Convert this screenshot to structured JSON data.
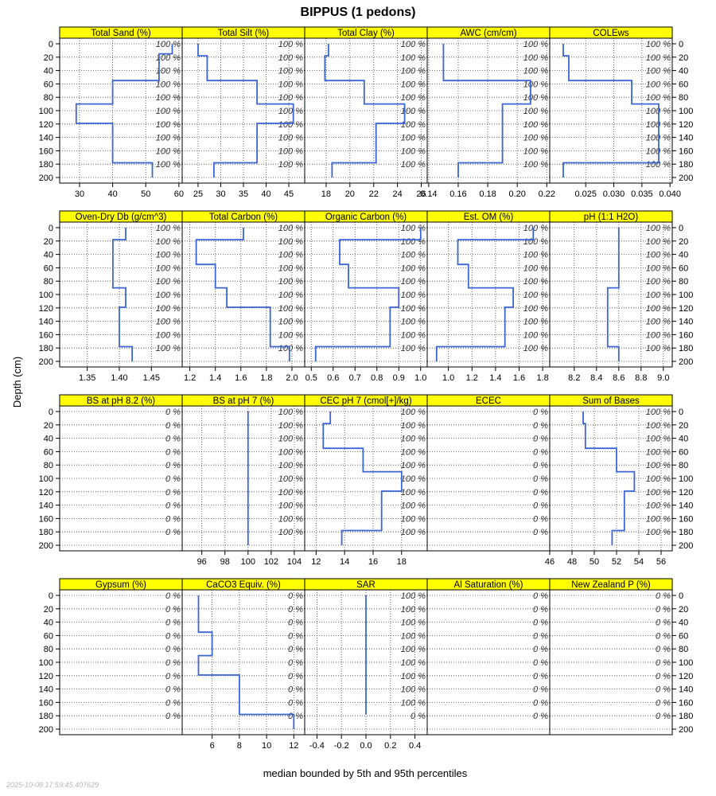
{
  "figure": {
    "title": "BIPPUS (1 pedons)",
    "ylabel": "Depth (cm)",
    "xlabel": "median bounded by 5th and 95th percentiles",
    "timestamp": "2025-10-08 17:59:45.407629"
  },
  "colors": {
    "line": "#3b66d6",
    "strip": "#ffff00",
    "grid": "#444444"
  },
  "chart_data": {
    "type": "line",
    "depth_axis": {
      "range": [
        0,
        200
      ],
      "reversed": true,
      "ticks": [
        0,
        20,
        40,
        60,
        80,
        100,
        120,
        140,
        160,
        180,
        200
      ]
    },
    "pct_depths": [
      0,
      20,
      40,
      60,
      80,
      100,
      120,
      140,
      160,
      180
    ],
    "panels": [
      {
        "title": "Total Sand (%)",
        "xlim": [
          24,
          61
        ],
        "xticks": [
          30,
          40,
          50,
          60
        ],
        "pct_value": "100 %",
        "steps": [
          [
            0,
            58
          ],
          [
            15,
            54
          ],
          [
            55,
            40
          ],
          [
            90,
            29
          ],
          [
            119,
            40
          ],
          [
            178,
            52
          ],
          [
            200,
            52
          ]
        ]
      },
      {
        "title": "Total Silt (%)",
        "xlim": [
          21.5,
          48.5
        ],
        "xticks": [
          25,
          30,
          35,
          40,
          45
        ],
        "pct_value": "100 %",
        "steps": [
          [
            0,
            25
          ],
          [
            18,
            27
          ],
          [
            55,
            38
          ],
          [
            90,
            46
          ],
          [
            119,
            38
          ],
          [
            178,
            28.5
          ],
          [
            200,
            28.5
          ]
        ]
      },
      {
        "title": "Total Clay (%)",
        "xlim": [
          16.2,
          26.5
        ],
        "xticks": [
          18,
          20,
          22,
          24,
          26
        ],
        "pct_value": "100 %",
        "steps": [
          [
            0,
            18.2
          ],
          [
            18,
            17.9
          ],
          [
            55,
            21.2
          ],
          [
            90,
            24.6
          ],
          [
            119,
            22.2
          ],
          [
            178,
            18.5
          ],
          [
            200,
            18.5
          ]
        ]
      },
      {
        "title": "AWC (cm/cm)",
        "xlim": [
          0.139,
          0.222
        ],
        "xticks": [
          0.14,
          0.16,
          0.18,
          0.2,
          0.22
        ],
        "pct_value": "100 %",
        "steps": [
          [
            0,
            0.15
          ],
          [
            55,
            0.209
          ],
          [
            90,
            0.19
          ],
          [
            178,
            0.16
          ],
          [
            200,
            0.16
          ]
        ]
      },
      {
        "title": "COLEws",
        "xlim": [
          0.0186,
          0.0404
        ],
        "xticks": [
          0.025,
          0.03,
          0.035,
          0.04
        ],
        "pct_value": "100 %",
        "steps": [
          [
            0,
            0.021
          ],
          [
            18,
            0.022
          ],
          [
            55,
            0.0332
          ],
          [
            90,
            0.038
          ],
          [
            178,
            0.021
          ],
          [
            200,
            0.021
          ]
        ]
      },
      {
        "title": "Oven-Dry Db (g/cm^3)",
        "xlim": [
          1.307,
          1.498
        ],
        "xticks": [
          1.35,
          1.4,
          1.45
        ],
        "pct_value": "100 %",
        "steps": [
          [
            0,
            1.41
          ],
          [
            18,
            1.39
          ],
          [
            90,
            1.41
          ],
          [
            119,
            1.4
          ],
          [
            178,
            1.42
          ],
          [
            200,
            1.42
          ]
        ]
      },
      {
        "title": "Total Carbon (%)",
        "xlim": [
          1.14,
          2.1
        ],
        "xticks": [
          1.2,
          1.4,
          1.6,
          1.8,
          2.0
        ],
        "pct_value": "100 %",
        "steps": [
          [
            0,
            1.62
          ],
          [
            18,
            1.25
          ],
          [
            55,
            1.4
          ],
          [
            90,
            1.49
          ],
          [
            119,
            1.83
          ],
          [
            178,
            1.98
          ],
          [
            200,
            1.98
          ]
        ]
      },
      {
        "title": "Organic Carbon (%)",
        "xlim": [
          0.47,
          1.03
        ],
        "xticks": [
          0.5,
          0.6,
          0.7,
          0.8,
          0.9,
          1.0
        ],
        "pct_value": "100 %",
        "steps": [
          [
            0,
            1.0
          ],
          [
            18,
            0.63
          ],
          [
            55,
            0.67
          ],
          [
            90,
            0.9
          ],
          [
            119,
            0.86
          ],
          [
            178,
            0.52
          ],
          [
            200,
            0.52
          ]
        ]
      },
      {
        "title": "Est. OM (%)",
        "xlim": [
          0.82,
          1.86
        ],
        "xticks": [
          1.0,
          1.2,
          1.4,
          1.6,
          1.8
        ],
        "pct_value": "100 %",
        "steps": [
          [
            0,
            1.72
          ],
          [
            18,
            1.08
          ],
          [
            55,
            1.17
          ],
          [
            90,
            1.55
          ],
          [
            119,
            1.48
          ],
          [
            178,
            0.9
          ],
          [
            200,
            0.9
          ]
        ]
      },
      {
        "title": "pH (1:1 H2O)",
        "xlim": [
          7.98,
          9.08
        ],
        "xticks": [
          8.2,
          8.4,
          8.6,
          8.8,
          9.0
        ],
        "pct_value": "100 %",
        "steps": [
          [
            0,
            8.6
          ],
          [
            90,
            8.5
          ],
          [
            178,
            8.6
          ],
          [
            200,
            8.6
          ]
        ]
      },
      {
        "title": "BS at pH 8.2 (%)",
        "xlim": [
          0,
          1
        ],
        "xticks": [],
        "pct_value": "0 %",
        "steps": []
      },
      {
        "title": "BS at pH 7 (%)",
        "xlim": [
          94.3,
          104.9
        ],
        "xticks": [
          96,
          98,
          100,
          102,
          104
        ],
        "pct_value": "100 %",
        "steps": [
          [
            0,
            100
          ],
          [
            200,
            100
          ]
        ]
      },
      {
        "title": "CEC pH 7 (cmol[+]/kg)",
        "xlim": [
          11.2,
          19.8
        ],
        "xticks": [
          12,
          14,
          16,
          18
        ],
        "pct_value": "100 %",
        "steps": [
          [
            0,
            13
          ],
          [
            18,
            12.5
          ],
          [
            55,
            15.3
          ],
          [
            90,
            18
          ],
          [
            119,
            16.6
          ],
          [
            178,
            13.8
          ],
          [
            200,
            13.8
          ]
        ]
      },
      {
        "title": "ECEC",
        "xlim": [
          0,
          1
        ],
        "xticks": [],
        "pct_value": "0 %",
        "steps": []
      },
      {
        "title": "Sum of Bases",
        "xlim": [
          46,
          57
        ],
        "xticks": [
          46,
          48,
          50,
          52,
          54,
          56
        ],
        "pct_value": "100 %",
        "steps": [
          [
            0,
            49
          ],
          [
            18,
            49.2
          ],
          [
            55,
            52
          ],
          [
            90,
            53.6
          ],
          [
            119,
            52.7
          ],
          [
            178,
            51.6
          ],
          [
            200,
            51.6
          ]
        ]
      },
      {
        "title": "Gypsum (%)",
        "xlim": [
          0,
          1
        ],
        "xticks": [],
        "pct_value": "0 %",
        "steps": []
      },
      {
        "title": "CaCO3 Equiv. (%)",
        "xlim": [
          3.8,
          12.8
        ],
        "xticks": [
          6,
          8,
          10,
          12
        ],
        "pct_value": "0 %",
        "steps": [
          [
            0,
            5
          ],
          [
            55,
            6
          ],
          [
            90,
            5
          ],
          [
            119,
            8
          ],
          [
            178,
            12
          ],
          [
            200,
            12
          ]
        ]
      },
      {
        "title": "SAR",
        "xlim": [
          -0.5,
          0.5
        ],
        "xticks": [
          -0.4,
          -0.2,
          0.0,
          0.2,
          0.4
        ],
        "pct_value": "100 %",
        "last_pct_value": "0 %",
        "steps": [
          [
            0,
            0
          ],
          [
            178,
            0
          ]
        ]
      },
      {
        "title": "Al Saturation (%)",
        "xlim": [
          0,
          1
        ],
        "xticks": [],
        "pct_value": "0 %",
        "steps": []
      },
      {
        "title": "New Zealand P (%)",
        "xlim": [
          0,
          1
        ],
        "xticks": [],
        "pct_value": "0 %",
        "steps": []
      }
    ]
  }
}
